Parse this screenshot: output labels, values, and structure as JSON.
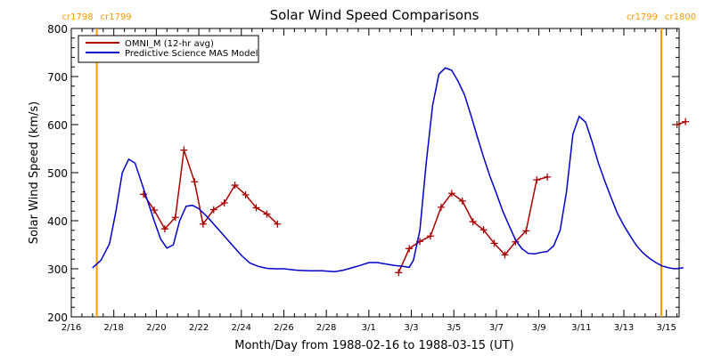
{
  "chart_data": {
    "type": "line",
    "title": "Solar Wind Speed Comparisons",
    "xlabel": "Month/Day from 1988-02-16 to 1988-03-15 (UT)",
    "ylabel": "Solar Wind Speed (km/s)",
    "xlim": [
      0,
      28.6
    ],
    "ylim": [
      200,
      800
    ],
    "x_tick_positions": [
      0,
      2,
      4,
      6,
      8,
      10,
      12,
      14,
      16,
      18,
      20,
      22,
      24,
      26,
      28
    ],
    "x_tick_labels": [
      "2/16",
      "2/18",
      "2/20",
      "2/22",
      "2/24",
      "2/26",
      "2/28",
      "3/1",
      "3/3",
      "3/5",
      "3/7",
      "3/9",
      "3/11",
      "3/13",
      "3/15"
    ],
    "y_ticks": [
      200,
      300,
      400,
      500,
      600,
      700,
      800
    ],
    "legend_position": "top-left",
    "carrington_markers": [
      {
        "x": 1.2,
        "left_label": "cr1798",
        "right_label": "cr1799"
      },
      {
        "x": 29.0,
        "left_label": "cr1799",
        "right_label": "cr1800"
      }
    ],
    "series": [
      {
        "name": "OMNI_M (12-hr avg)",
        "color": "#aa0000",
        "markers": true,
        "segments": [
          [
            [
              3.4,
              455
            ],
            [
              3.9,
              422
            ],
            [
              4.4,
              383
            ],
            [
              4.9,
              407
            ],
            [
              5.3,
              547
            ],
            [
              5.8,
              481
            ],
            [
              6.2,
              393
            ],
            [
              6.7,
              423
            ],
            [
              7.2,
              437
            ],
            [
              7.7,
              474
            ],
            [
              8.2,
              454
            ],
            [
              8.7,
              427
            ],
            [
              9.2,
              414
            ],
            [
              9.7,
              393
            ]
          ],
          [
            [
              15.4,
              292
            ],
            [
              15.9,
              342
            ],
            [
              16.4,
              357
            ],
            [
              16.9,
              368
            ],
            [
              17.4,
              428
            ],
            [
              17.9,
              457
            ],
            [
              18.4,
              441
            ],
            [
              18.9,
              398
            ],
            [
              19.4,
              381
            ],
            [
              19.9,
              353
            ],
            [
              20.4,
              329
            ],
            [
              20.9,
              356
            ],
            [
              21.4,
              379
            ],
            [
              21.9,
              485
            ],
            [
              22.4,
              491
            ]
          ],
          [
            [
              28.5,
              600
            ],
            [
              28.9,
              606
            ]
          ]
        ]
      },
      {
        "name": "Predictive Science MAS Model",
        "color": "#0000cc",
        "markers": false,
        "segments": [
          [
            [
              1.0,
              302
            ],
            [
              1.4,
              318
            ],
            [
              1.8,
              352
            ],
            [
              2.1,
              420
            ],
            [
              2.4,
              500
            ],
            [
              2.7,
              528
            ],
            [
              3.0,
              520
            ],
            [
              3.3,
              480
            ],
            [
              3.6,
              440
            ],
            [
              3.9,
              400
            ],
            [
              4.2,
              362
            ],
            [
              4.5,
              343
            ],
            [
              4.8,
              350
            ],
            [
              5.1,
              400
            ],
            [
              5.4,
              430
            ],
            [
              5.7,
              432
            ],
            [
              6.0,
              425
            ],
            [
              6.4,
              408
            ],
            [
              6.8,
              388
            ],
            [
              7.2,
              368
            ],
            [
              7.6,
              348
            ],
            [
              8.0,
              328
            ],
            [
              8.4,
              312
            ],
            [
              8.8,
              305
            ],
            [
              9.2,
              301
            ],
            [
              9.6,
              300
            ],
            [
              10.0,
              300
            ],
            [
              10.6,
              297
            ],
            [
              11.2,
              296
            ],
            [
              11.8,
              296
            ],
            [
              12.4,
              294
            ],
            [
              12.8,
              297
            ],
            [
              13.2,
              302
            ],
            [
              13.6,
              307
            ],
            [
              14.0,
              313
            ],
            [
              14.4,
              313
            ],
            [
              14.8,
              310
            ],
            [
              15.2,
              307
            ],
            [
              15.6,
              305
            ],
            [
              15.9,
              303
            ],
            [
              16.1,
              318
            ],
            [
              16.4,
              380
            ],
            [
              16.7,
              520
            ],
            [
              17.0,
              640
            ],
            [
              17.3,
              705
            ],
            [
              17.6,
              718
            ],
            [
              17.9,
              713
            ],
            [
              18.2,
              690
            ],
            [
              18.5,
              662
            ],
            [
              18.8,
              620
            ],
            [
              19.1,
              575
            ],
            [
              19.4,
              532
            ],
            [
              19.7,
              492
            ],
            [
              20.0,
              457
            ],
            [
              20.3,
              420
            ],
            [
              20.6,
              390
            ],
            [
              20.9,
              360
            ],
            [
              21.2,
              342
            ],
            [
              21.5,
              332
            ],
            [
              21.8,
              331
            ],
            [
              22.1,
              334
            ],
            [
              22.4,
              336
            ],
            [
              22.7,
              348
            ],
            [
              23.0,
              380
            ],
            [
              23.3,
              460
            ],
            [
              23.6,
              580
            ],
            [
              23.9,
              617
            ],
            [
              24.2,
              605
            ],
            [
              24.5,
              565
            ],
            [
              24.8,
              520
            ],
            [
              25.1,
              483
            ],
            [
              25.4,
              448
            ],
            [
              25.7,
              415
            ],
            [
              26.0,
              390
            ],
            [
              26.3,
              368
            ],
            [
              26.6,
              348
            ],
            [
              26.9,
              333
            ],
            [
              27.2,
              322
            ],
            [
              27.5,
              313
            ],
            [
              27.8,
              306
            ],
            [
              28.1,
              302
            ],
            [
              28.4,
              300
            ],
            [
              28.8,
              302
            ]
          ]
        ]
      }
    ]
  }
}
